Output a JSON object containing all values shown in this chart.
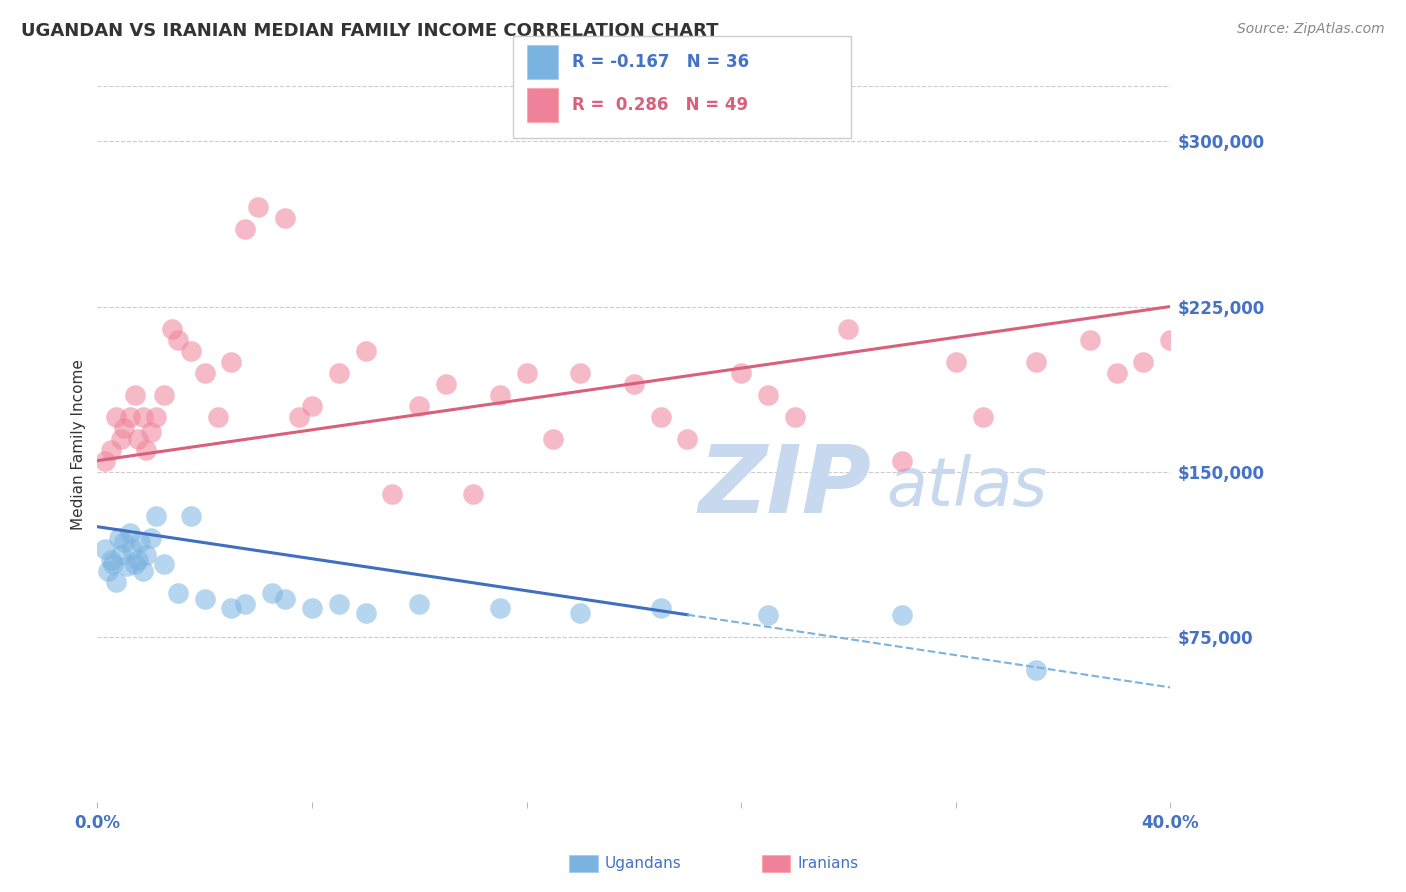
{
  "title": "UGANDAN VS IRANIAN MEDIAN FAMILY INCOME CORRELATION CHART",
  "source": "Source: ZipAtlas.com",
  "ylabel": "Median Family Income",
  "xlim": [
    0.0,
    40.0
  ],
  "ylim": [
    0,
    325000
  ],
  "yticks": [
    75000,
    150000,
    225000,
    300000
  ],
  "ytick_labels": [
    "$75,000",
    "$150,000",
    "$225,000",
    "$300,000"
  ],
  "xticks": [
    0.0,
    8.0,
    16.0,
    24.0,
    32.0,
    40.0
  ],
  "ugandan_color": "#7ab3e0",
  "iranian_color": "#f0819a",
  "ugandan_line_color": "#3f6fc0",
  "iranian_line_color": "#d95f7a",
  "ugandan_R": -0.167,
  "ugandan_N": 36,
  "iranian_R": 0.286,
  "iranian_N": 49,
  "watermark_zip": "ZIP",
  "watermark_atlas": "atlas",
  "watermark_color": "#c8d8ee",
  "ugandan_scatter_x": [
    0.3,
    0.4,
    0.5,
    0.6,
    0.7,
    0.8,
    0.9,
    1.0,
    1.1,
    1.2,
    1.3,
    1.4,
    1.5,
    1.6,
    1.7,
    1.8,
    2.0,
    2.2,
    2.5,
    3.0,
    3.5,
    4.0,
    5.0,
    5.5,
    6.5,
    7.0,
    8.0,
    9.0,
    10.0,
    12.0,
    15.0,
    18.0,
    21.0,
    25.0,
    30.0,
    35.0
  ],
  "ugandan_scatter_y": [
    115000,
    105000,
    110000,
    108000,
    100000,
    120000,
    112000,
    118000,
    107000,
    122000,
    115000,
    108000,
    110000,
    118000,
    105000,
    112000,
    120000,
    130000,
    108000,
    95000,
    130000,
    92000,
    88000,
    90000,
    95000,
    92000,
    88000,
    90000,
    86000,
    90000,
    88000,
    86000,
    88000,
    85000,
    85000,
    60000
  ],
  "iranian_scatter_x": [
    0.3,
    0.5,
    0.7,
    0.9,
    1.0,
    1.2,
    1.4,
    1.5,
    1.7,
    1.8,
    2.0,
    2.2,
    2.5,
    2.8,
    3.0,
    3.5,
    4.0,
    4.5,
    5.0,
    5.5,
    6.0,
    7.0,
    7.5,
    8.0,
    9.0,
    10.0,
    11.0,
    12.0,
    13.0,
    14.0,
    15.0,
    16.0,
    17.0,
    18.0,
    20.0,
    21.0,
    22.0,
    24.0,
    25.0,
    26.0,
    28.0,
    30.0,
    32.0,
    33.0,
    35.0,
    37.0,
    38.0,
    39.0,
    40.0
  ],
  "iranian_scatter_y": [
    155000,
    160000,
    175000,
    165000,
    170000,
    175000,
    185000,
    165000,
    175000,
    160000,
    168000,
    175000,
    185000,
    215000,
    210000,
    205000,
    195000,
    175000,
    200000,
    260000,
    270000,
    265000,
    175000,
    180000,
    195000,
    205000,
    140000,
    180000,
    190000,
    140000,
    185000,
    195000,
    165000,
    195000,
    190000,
    175000,
    165000,
    195000,
    185000,
    175000,
    215000,
    155000,
    200000,
    175000,
    200000,
    210000,
    195000,
    200000,
    210000
  ],
  "ugandan_line_x0": 0.0,
  "ugandan_line_x1": 22.0,
  "ugandan_line_y0": 125000,
  "ugandan_line_y1": 85000,
  "ugandan_dash_x0": 22.0,
  "ugandan_dash_x1": 40.0,
  "ugandan_dash_y0": 85000,
  "ugandan_dash_y1": 52000,
  "iranian_line_x0": 0.0,
  "iranian_line_x1": 40.0,
  "iranian_line_y0": 155000,
  "iranian_line_y1": 225000,
  "background_color": "#ffffff",
  "grid_color": "#cccccc",
  "title_color": "#333333",
  "tick_label_color": "#4472c4",
  "source_color": "#888888"
}
